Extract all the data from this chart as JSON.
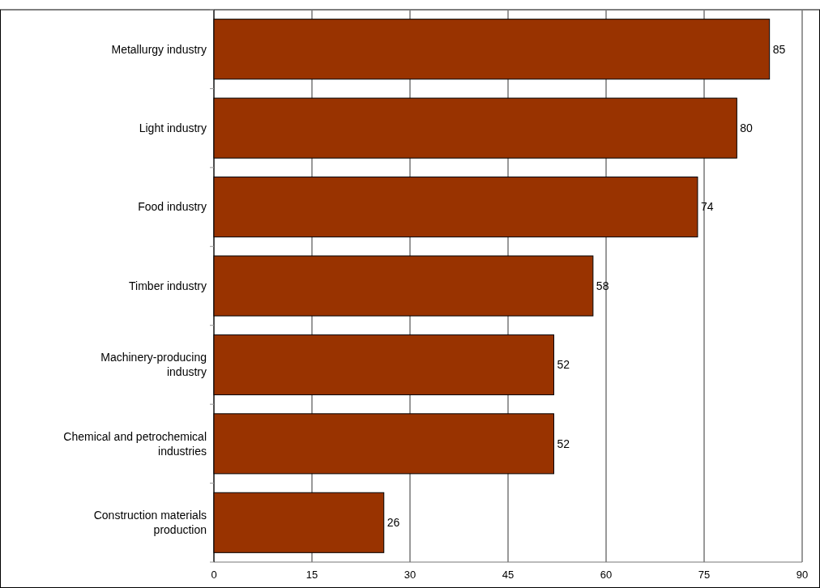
{
  "chart_data": {
    "type": "bar",
    "orientation": "horizontal",
    "categories": [
      "Metallurgy industry",
      "Light industry",
      "Food industry",
      "Timber industry",
      "Machinery-producing industry",
      "Chemical and petrochemical industries",
      "Construction materials production"
    ],
    "values": [
      85,
      80,
      74,
      58,
      52,
      52,
      26
    ],
    "color": "#993300",
    "xlim": [
      0,
      90
    ],
    "xticks": [
      0,
      15,
      30,
      45,
      60,
      75,
      90
    ],
    "grid": "x",
    "data_labels": true
  }
}
